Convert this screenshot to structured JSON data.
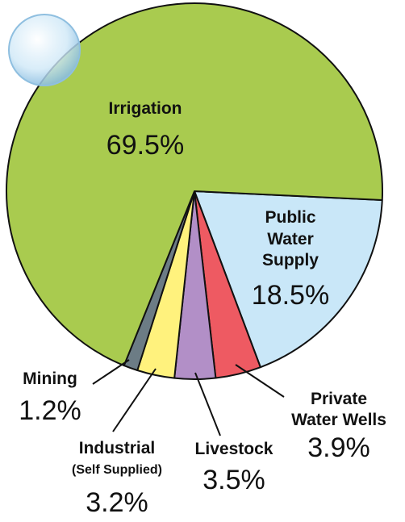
{
  "chart_data": {
    "type": "pie",
    "categories": [
      "Public Water Supply",
      "Private Water Wells",
      "Livestock",
      "Industrial (Self Supplied)",
      "Mining",
      "Irrigation"
    ],
    "values": [
      18.5,
      3.9,
      3.5,
      3.2,
      1.2,
      69.5
    ],
    "value_labels": [
      "18.5%",
      "3.9%",
      "3.5%",
      "3.2%",
      "1.2%",
      "69.5%"
    ],
    "colors": [
      "#c9e7f8",
      "#ee5a62",
      "#b28fc7",
      "#fff27d",
      "#6c7c85",
      "#a9cb4f"
    ]
  }
}
